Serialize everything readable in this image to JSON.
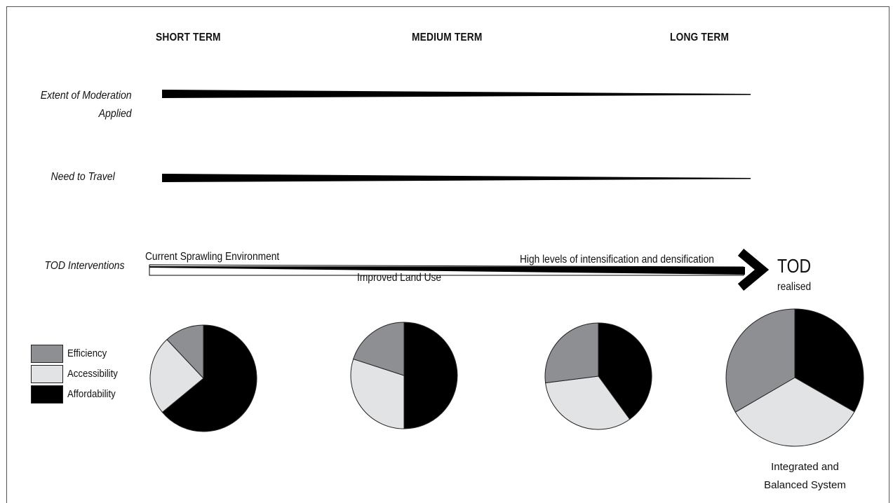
{
  "phases": {
    "short": "SHORT TERM",
    "medium": "MEDIUM TERM",
    "long": "LONG TERM"
  },
  "rows": {
    "moderation": "Extent of Moderation\nApplied",
    "travel": "Need to Travel",
    "tod": "TOD Interventions"
  },
  "tod_line": {
    "start_label": "Current Sprawling Environment",
    "mid_label": "Improved Land Use",
    "end_label": "High levels of intensification and densification",
    "outcome_title": "TOD",
    "outcome_sub": "realised"
  },
  "legend": [
    {
      "key": "efficiency",
      "label": "Efficiency",
      "color": "#8e8f93"
    },
    {
      "key": "accessibility",
      "label": "Accessibility",
      "color": "#e2e3e5"
    },
    {
      "key": "affordability",
      "label": "Affordability",
      "color": "#000000"
    }
  ],
  "pies": [
    {
      "stage": "short",
      "affordability": 64,
      "accessibility": 24,
      "efficiency": 12
    },
    {
      "stage": "medium-1",
      "affordability": 50,
      "accessibility": 30,
      "efficiency": 20
    },
    {
      "stage": "medium-2",
      "affordability": 40,
      "accessibility": 33,
      "efficiency": 27
    },
    {
      "stage": "long",
      "affordability": 33.3,
      "accessibility": 33.3,
      "efficiency": 33.4
    }
  ],
  "final_caption": "Integrated and\nBalanced System"
}
